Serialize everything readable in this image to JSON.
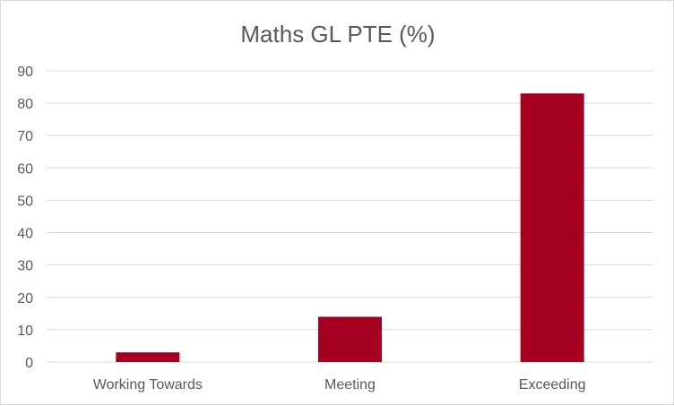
{
  "chart_data": {
    "type": "bar",
    "title": "Maths GL PTE (%)",
    "xlabel": "",
    "ylabel": "",
    "categories": [
      "Working Towards",
      "Meeting",
      "Exceeding"
    ],
    "values": [
      3,
      14,
      83
    ],
    "ylim": [
      0,
      90
    ],
    "yticks": [
      "0",
      "10",
      "20",
      "30",
      "40",
      "50",
      "60",
      "70",
      "80",
      "90"
    ],
    "grid": true,
    "legend": "none",
    "bar_color": "#a50021"
  }
}
